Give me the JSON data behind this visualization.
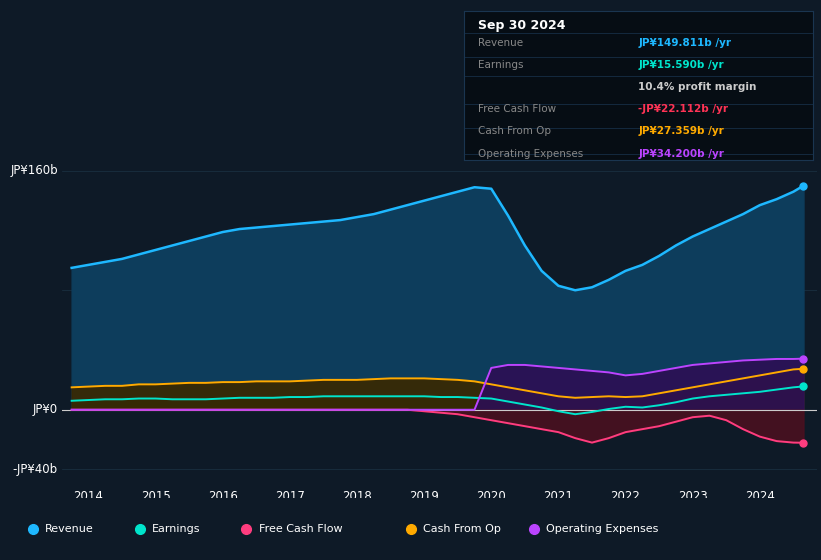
{
  "bg_color": "#0e1a27",
  "plot_bg_color": "#0e1a27",
  "grid_color": "#1c3344",
  "zero_line_color": "#cccccc",
  "revenue_color": "#1eb8ff",
  "revenue_fill_color": "#0d3d5c",
  "earnings_color": "#00e5cc",
  "earnings_fill_color": "#0a3530",
  "fcf_color": "#ff3d7f",
  "fcf_fill_color": "#4a1020",
  "cashop_color": "#ffaa00",
  "cashop_fill_color": "#3a2800",
  "opex_color": "#bb44ff",
  "opex_fill_color": "#2d0f55",
  "years": [
    2013.75,
    2014.0,
    2014.25,
    2014.5,
    2014.75,
    2015.0,
    2015.25,
    2015.5,
    2015.75,
    2016.0,
    2016.25,
    2016.5,
    2016.75,
    2017.0,
    2017.25,
    2017.5,
    2017.75,
    2018.0,
    2018.25,
    2018.5,
    2018.75,
    2019.0,
    2019.25,
    2019.5,
    2019.75,
    2020.0,
    2020.25,
    2020.5,
    2020.75,
    2021.0,
    2021.25,
    2021.5,
    2021.75,
    2022.0,
    2022.25,
    2022.5,
    2022.75,
    2023.0,
    2023.25,
    2023.5,
    2023.75,
    2024.0,
    2024.25,
    2024.5,
    2024.65
  ],
  "revenue": [
    95,
    97,
    99,
    101,
    104,
    107,
    110,
    113,
    116,
    119,
    121,
    122,
    123,
    124,
    125,
    126,
    127,
    129,
    131,
    134,
    137,
    140,
    143,
    146,
    149,
    148,
    130,
    110,
    93,
    83,
    80,
    82,
    87,
    93,
    97,
    103,
    110,
    116,
    121,
    126,
    131,
    137,
    141,
    146,
    150
  ],
  "earnings": [
    6,
    6.5,
    7,
    7,
    7.5,
    7.5,
    7,
    7,
    7,
    7.5,
    8,
    8,
    8,
    8.5,
    8.5,
    9,
    9,
    9,
    9,
    9,
    9,
    9,
    8.5,
    8.5,
    8,
    7.5,
    5.5,
    3.5,
    1.5,
    -1,
    -3,
    -1.5,
    0.5,
    2,
    1.5,
    3,
    5,
    7.5,
    9,
    10,
    11,
    12,
    13.5,
    15,
    15.6
  ],
  "fcf": [
    0,
    0,
    0,
    0,
    0,
    0,
    0,
    0,
    0,
    0,
    0,
    0,
    0,
    0,
    0,
    0,
    0,
    0,
    0,
    0,
    0,
    -1,
    -2,
    -3,
    -5,
    -7,
    -9,
    -11,
    -13,
    -15,
    -19,
    -22,
    -19,
    -15,
    -13,
    -11,
    -8,
    -5,
    -4,
    -7,
    -13,
    -18,
    -21,
    -22,
    -22.1
  ],
  "cashop": [
    15,
    15.5,
    16,
    16,
    17,
    17,
    17.5,
    18,
    18,
    18.5,
    18.5,
    19,
    19,
    19,
    19.5,
    20,
    20,
    20,
    20.5,
    21,
    21,
    21,
    20.5,
    20,
    19,
    17,
    15,
    13,
    11,
    9,
    8,
    8.5,
    9,
    8.5,
    9,
    11,
    13,
    15,
    17,
    19,
    21,
    23,
    25,
    27,
    27.4
  ],
  "opex": [
    0,
    0,
    0,
    0,
    0,
    0,
    0,
    0,
    0,
    0,
    0,
    0,
    0,
    0,
    0,
    0,
    0,
    0,
    0,
    0,
    0,
    0,
    0,
    0,
    0,
    28,
    30,
    30,
    29,
    28,
    27,
    26,
    25,
    23,
    24,
    26,
    28,
    30,
    31,
    32,
    33,
    33.5,
    34,
    34,
    34.2
  ],
  "tooltip": {
    "title": "Sep 30 2024",
    "title_color": "#ffffff",
    "bg_color": "#060d14",
    "border_color": "#1a3550",
    "rows": [
      {
        "label": "Revenue",
        "label_color": "#888888",
        "value": "JP¥149.811b /yr",
        "value_color": "#1eb8ff"
      },
      {
        "label": "Earnings",
        "label_color": "#888888",
        "value": "JP¥15.590b /yr",
        "value_color": "#00e5cc"
      },
      {
        "label": "",
        "label_color": "#888888",
        "value": "10.4% profit margin",
        "value_color": "#cccccc"
      },
      {
        "label": "Free Cash Flow",
        "label_color": "#888888",
        "value": "-JP¥22.112b /yr",
        "value_color": "#ff3355"
      },
      {
        "label": "Cash From Op",
        "label_color": "#888888",
        "value": "JP¥27.359b /yr",
        "value_color": "#ffaa00"
      },
      {
        "label": "Operating Expenses",
        "label_color": "#888888",
        "value": "JP¥34.200b /yr",
        "value_color": "#bb44ff"
      }
    ]
  },
  "legend_items": [
    {
      "label": "Revenue",
      "color": "#1eb8ff"
    },
    {
      "label": "Earnings",
      "color": "#00e5cc"
    },
    {
      "label": "Free Cash Flow",
      "color": "#ff3d7f"
    },
    {
      "label": "Cash From Op",
      "color": "#ffaa00"
    },
    {
      "label": "Operating Expenses",
      "color": "#bb44ff"
    }
  ],
  "ylim": [
    -50,
    175
  ],
  "xlim": [
    2013.6,
    2024.85
  ],
  "xtick_years": [
    2014,
    2015,
    2016,
    2017,
    2018,
    2019,
    2020,
    2021,
    2022,
    2023,
    2024
  ],
  "ytick_positions": [
    -40,
    0,
    160
  ],
  "ytick_labels": [
    "-JP¥40b",
    "JP¥0",
    "JP¥160b"
  ],
  "hgrid_lines": [
    -40,
    0,
    80,
    160
  ]
}
